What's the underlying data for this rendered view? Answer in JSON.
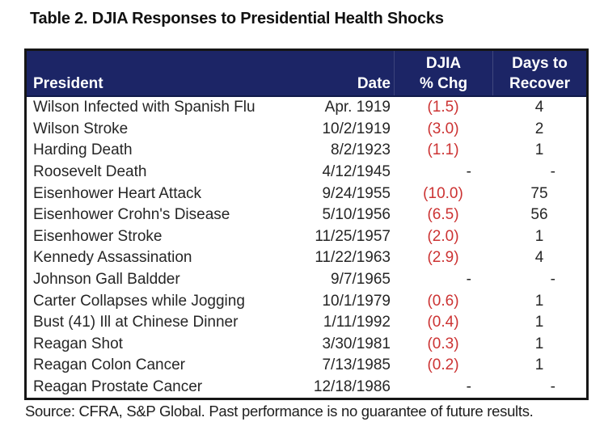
{
  "title": "Table 2. DJIA Responses to Presidential Health Shocks",
  "source_note": "Source: CFRA, S&P Global. Past performance is no guarantee of future results.",
  "colors": {
    "header_bg": "#1c2566",
    "header_text": "#ffffff",
    "negative_value": "#cc3333",
    "body_text": "#262626",
    "table_border": "#161616"
  },
  "table": {
    "columns": [
      {
        "id": "president",
        "label_lines": [
          "President"
        ]
      },
      {
        "id": "date",
        "label_lines": [
          "Date"
        ]
      },
      {
        "id": "pct",
        "label_lines": [
          "DJIA",
          "% Chg"
        ]
      },
      {
        "id": "days",
        "label_lines": [
          "Days to",
          "Recover"
        ]
      }
    ],
    "rows": [
      {
        "president": "Wilson Infected with Spanish Flu",
        "date": "Apr. 1919",
        "pct": "(1.5)",
        "days": "4"
      },
      {
        "president": "Wilson Stroke",
        "date": "10/2/1919",
        "pct": "(3.0)",
        "days": "2"
      },
      {
        "president": "Harding Death",
        "date": "8/2/1923",
        "pct": "(1.1)",
        "days": "1"
      },
      {
        "president": "Roosevelt Death",
        "date": "4/12/1945",
        "pct": "-",
        "days": "-"
      },
      {
        "president": "Eisenhower Heart Attack",
        "date": "9/24/1955",
        "pct": "(10.0)",
        "days": "75"
      },
      {
        "president": "Eisenhower Crohn's Disease",
        "date": "5/10/1956",
        "pct": "(6.5)",
        "days": "56"
      },
      {
        "president": "Eisenhower Stroke",
        "date": "11/25/1957",
        "pct": "(2.0)",
        "days": "1"
      },
      {
        "president": "Kennedy Assassination",
        "date": "11/22/1963",
        "pct": "(2.9)",
        "days": "4"
      },
      {
        "president": "Johnson Gall Baldder",
        "date": "9/7/1965",
        "pct": "-",
        "days": "-"
      },
      {
        "president": "Carter Collapses while Jogging",
        "date": "10/1/1979",
        "pct": "(0.6)",
        "days": "1"
      },
      {
        "president": "Bust (41) Ill at Chinese Dinner",
        "date": "1/11/1992",
        "pct": "(0.4)",
        "days": "1"
      },
      {
        "president": "Reagan Shot",
        "date": "3/30/1981",
        "pct": "(0.3)",
        "days": "1"
      },
      {
        "president": "Reagan Colon Cancer",
        "date": "7/13/1985",
        "pct": "(0.2)",
        "days": "1"
      },
      {
        "president": "Reagan Prostate Cancer",
        "date": "12/18/1986",
        "pct": "-",
        "days": "-"
      }
    ]
  },
  "chart_data": {
    "type": "table",
    "title": "Table 2. DJIA Responses to Presidential Health Shocks",
    "columns": [
      "President",
      "Date",
      "DJIA % Chg",
      "Days to Recover"
    ],
    "rows": [
      [
        "Wilson Infected with Spanish Flu",
        "Apr. 1919",
        -1.5,
        4
      ],
      [
        "Wilson Stroke",
        "10/2/1919",
        -3.0,
        2
      ],
      [
        "Harding Death",
        "8/2/1923",
        -1.1,
        1
      ],
      [
        "Roosevelt Death",
        "4/12/1945",
        null,
        null
      ],
      [
        "Eisenhower Heart Attack",
        "9/24/1955",
        -10.0,
        75
      ],
      [
        "Eisenhower Crohn's Disease",
        "5/10/1956",
        -6.5,
        56
      ],
      [
        "Eisenhower Stroke",
        "11/25/1957",
        -2.0,
        1
      ],
      [
        "Kennedy Assassination",
        "11/22/1963",
        -2.9,
        4
      ],
      [
        "Johnson Gall Baldder",
        "9/7/1965",
        null,
        null
      ],
      [
        "Carter Collapses while Jogging",
        "10/1/1979",
        -0.6,
        1
      ],
      [
        "Bust (41) Ill at Chinese Dinner",
        "1/11/1992",
        -0.4,
        1
      ],
      [
        "Reagan Shot",
        "3/30/1981",
        -0.3,
        1
      ],
      [
        "Reagan Colon Cancer",
        "7/13/1985",
        -0.2,
        1
      ],
      [
        "Reagan Prostate Cancer",
        "12/18/1986",
        null,
        null
      ]
    ],
    "notes": "Negative DJIA % Chg values shown in red parentheses; missing values shown as dashes.",
    "footer": "Source: CFRA, S&P Global. Past performance is no guarantee of future results."
  }
}
